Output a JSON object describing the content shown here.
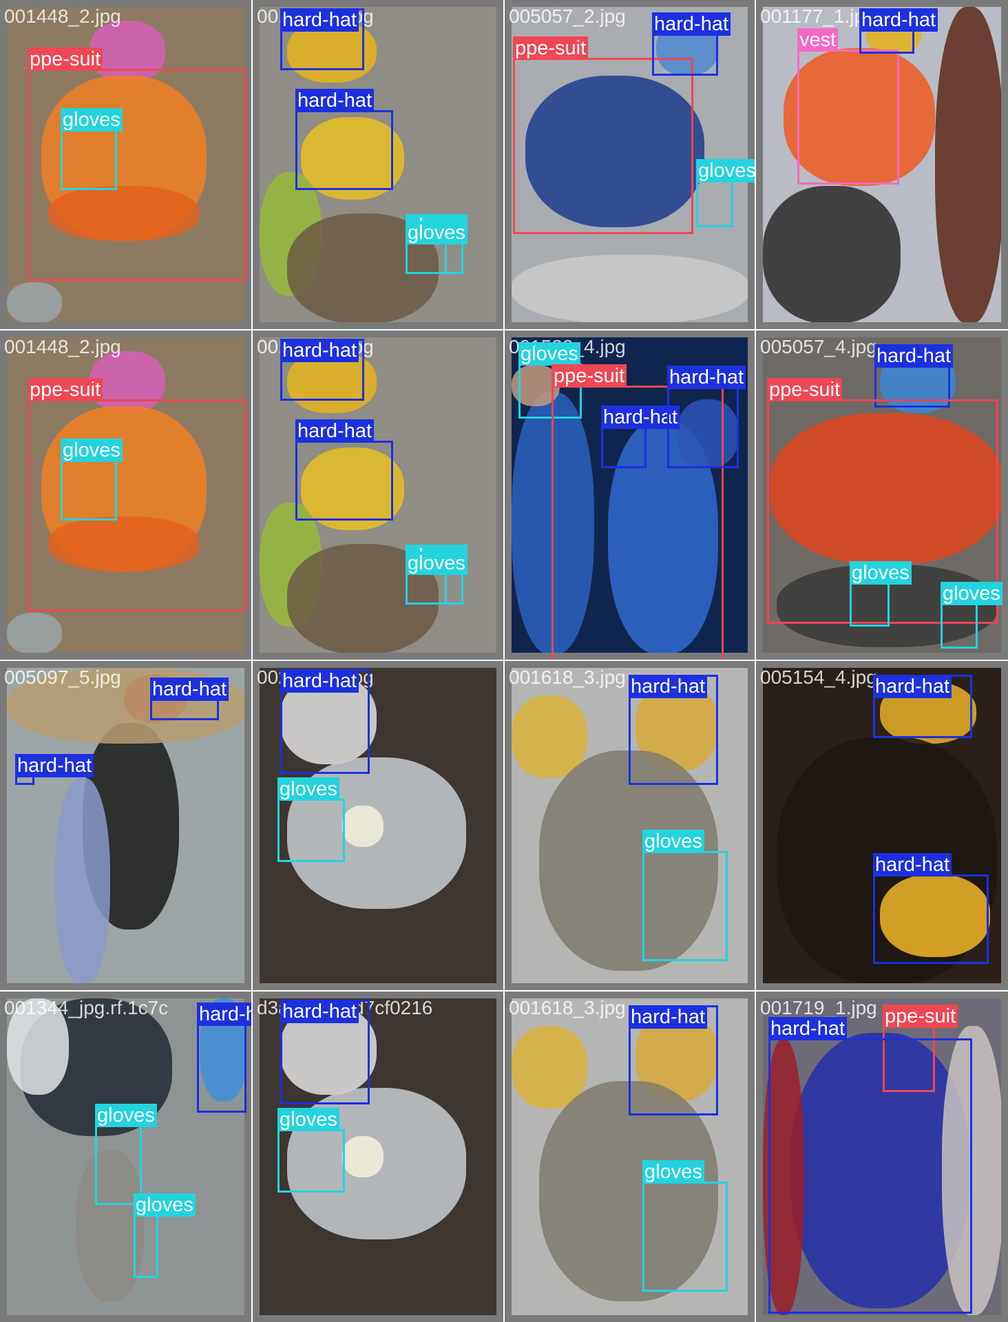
{
  "classes": {
    "ppe-suit": {
      "label": "ppe-suit",
      "color": "#ef4754"
    },
    "hard-hat": {
      "label": "hard-hat",
      "color": "#1c30e0"
    },
    "gloves": {
      "label": "gloves",
      "color": "#23d3de"
    },
    "vest": {
      "label": "vest",
      "color": "#f469c4"
    }
  },
  "tiles": [
    {
      "filename": "001448_2.jpg",
      "background": "#8d7a62",
      "detections": [
        {
          "class": "ppe-suit"
        },
        {
          "class": "gloves"
        }
      ]
    },
    {
      "filename": "001230_2.jpg",
      "background": "#8f8d86",
      "detections": [
        {
          "class": "hard-hat"
        },
        {
          "class": "hard-hat"
        },
        {
          "class": "gloves"
        },
        {
          "class": "gloves"
        }
      ]
    },
    {
      "filename": "005057_2.jpg",
      "background": "#a9acb1",
      "detections": [
        {
          "class": "ppe-suit"
        },
        {
          "class": "hard-hat"
        },
        {
          "class": "gloves"
        }
      ]
    },
    {
      "filename": "001177_1.jpg",
      "background": "#b9bcc4",
      "detections": [
        {
          "class": "vest"
        },
        {
          "class": "hard-hat"
        }
      ]
    },
    {
      "filename": "001448_2.jpg",
      "background": "#8d7a62",
      "detections": [
        {
          "class": "ppe-suit"
        },
        {
          "class": "gloves"
        }
      ]
    },
    {
      "filename": "001230_2.jpg",
      "background": "#8f8d86",
      "detections": [
        {
          "class": "hard-hat"
        },
        {
          "class": "hard-hat"
        },
        {
          "class": "gloves"
        },
        {
          "class": "gloves"
        }
      ]
    },
    {
      "filename": "001538_4.jpg",
      "background": "#10254e",
      "detections": [
        {
          "class": "gloves"
        },
        {
          "class": "ppe-suit"
        },
        {
          "class": "hard-hat"
        },
        {
          "class": "hard-hat"
        }
      ]
    },
    {
      "filename": "005057_4.jpg",
      "background": "#6f6a66",
      "detections": [
        {
          "class": "hard-hat"
        },
        {
          "class": "ppe-suit"
        },
        {
          "class": "gloves"
        },
        {
          "class": "gloves"
        }
      ]
    },
    {
      "filename": "005097_5.jpg",
      "background": "#9ea5a6",
      "detections": [
        {
          "class": "hard-hat"
        },
        {
          "class": "hard-hat"
        }
      ]
    },
    {
      "filename": "002281_2.jpg",
      "background": "#3e3630",
      "detections": [
        {
          "class": "hard-hat"
        },
        {
          "class": "gloves"
        }
      ]
    },
    {
      "filename": "001618_3.jpg",
      "background": "#b5b6b3",
      "detections": [
        {
          "class": "hard-hat"
        },
        {
          "class": "gloves"
        }
      ]
    },
    {
      "filename": "005154_4.jpg",
      "background": "#2b2019",
      "detections": [
        {
          "class": "hard-hat"
        },
        {
          "class": "hard-hat"
        }
      ]
    },
    {
      "filename": "001344_jpg.rf.1c7c",
      "background": "#8e9494",
      "detections": [
        {
          "class": "hard-hat"
        },
        {
          "class": "gloves"
        },
        {
          "class": "gloves"
        }
      ]
    },
    {
      "filename": "d3aa8e5a2d7cf0216",
      "background": "#3e3630",
      "detections": [
        {
          "class": "hard-hat"
        },
        {
          "class": "gloves"
        }
      ]
    },
    {
      "filename": "001618_3.jpg",
      "background": "#b5b6b3",
      "detections": [
        {
          "class": "hard-hat"
        },
        {
          "class": "gloves"
        }
      ]
    },
    {
      "filename": "001719_1.jpg",
      "background": "#6e6b78",
      "detections": [
        {
          "class": "ppe-suit"
        },
        {
          "class": "hard-hat"
        }
      ]
    }
  ]
}
